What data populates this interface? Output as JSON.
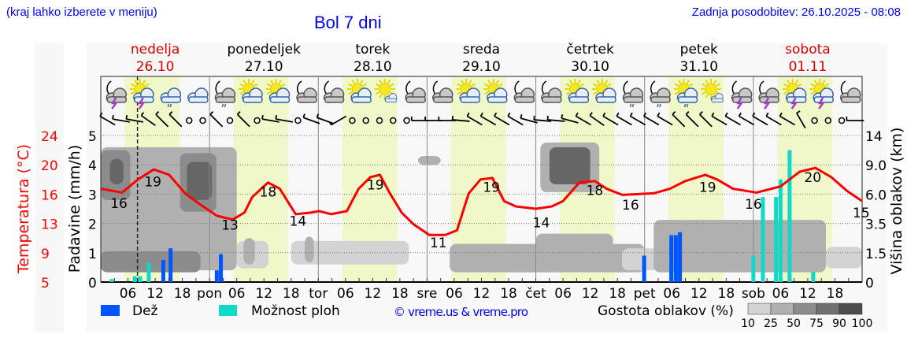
{
  "header": {
    "hint": "(kraj lahko izberete v meniju)",
    "title": "Bol 7 dni",
    "updated": "Zadnja posodobitev: 26.10.2025 - 08:08"
  },
  "colors": {
    "temp": "#ff0000",
    "rain": "#0055ff",
    "showers": "#11d9c8",
    "weekend": "#dd0000",
    "day_band": "#f0f7c8",
    "link": "#0000ff"
  },
  "chart_data": {
    "type": "meteogram",
    "title": "Bol 7 dni",
    "days": [
      {
        "name": "nedelja",
        "date": "26.10",
        "weekend": true
      },
      {
        "name": "ponedeljek",
        "date": "27.10",
        "weekend": false
      },
      {
        "name": "torek",
        "date": "28.10",
        "weekend": false
      },
      {
        "name": "sreda",
        "date": "29.10",
        "weekend": false
      },
      {
        "name": "četrtek",
        "date": "30.10",
        "weekend": false
      },
      {
        "name": "petek",
        "date": "31.10",
        "weekend": false
      },
      {
        "name": "sobota",
        "date": "01.11",
        "weekend": true
      }
    ],
    "x_tick_labels": [
      "06",
      "12",
      "18",
      "pon",
      "06",
      "12",
      "18",
      "tor",
      "06",
      "12",
      "18",
      "sre",
      "06",
      "12",
      "18",
      "čet",
      "06",
      "12",
      "18",
      "pet",
      "06",
      "12",
      "18",
      "sob",
      "06",
      "12",
      "18"
    ],
    "now_hour": 8.1,
    "daylight_hours": [
      5.3,
      17.4
    ],
    "left_temp_axis": {
      "label": "Temperatura (°C)",
      "ticks": [
        "24",
        "20",
        "16",
        "13",
        "9",
        "5"
      ],
      "range": [
        5,
        24
      ]
    },
    "left_precip_axis": {
      "label": "Padavine (mm/h)",
      "ticks": [
        "5",
        "4",
        "3",
        "2",
        "1",
        "0"
      ],
      "range": [
        0,
        5
      ]
    },
    "right_axis": {
      "label": "Višina oblakov (km)",
      "ticks": [
        "14",
        "9.0",
        "6.0",
        "3.5",
        "1.5",
        "0"
      ],
      "values": [
        14,
        9,
        6,
        3.5,
        1.5,
        0
      ]
    },
    "temperature": [
      [
        0,
        17.1
      ],
      [
        4.7,
        16.6
      ],
      [
        8.2,
        18.3
      ],
      [
        11.7,
        19.6
      ],
      [
        15.1,
        18.9
      ],
      [
        18.6,
        16.5
      ],
      [
        22.1,
        15.0
      ],
      [
        25.6,
        13.6
      ],
      [
        29.1,
        13.1
      ],
      [
        31.7,
        14.0
      ],
      [
        33.4,
        16.0
      ],
      [
        36.9,
        17.9
      ],
      [
        39.5,
        17.1
      ],
      [
        43,
        13.8
      ],
      [
        46.4,
        14.0
      ],
      [
        48.2,
        14.2
      ],
      [
        50.8,
        13.8
      ],
      [
        54.3,
        14.2
      ],
      [
        56.9,
        17.1
      ],
      [
        59.5,
        18.6
      ],
      [
        61.6,
        18.9
      ],
      [
        63.8,
        16.5
      ],
      [
        66.4,
        14.0
      ],
      [
        69,
        12.5
      ],
      [
        72.5,
        11.1
      ],
      [
        76,
        11.1
      ],
      [
        78.6,
        11.7
      ],
      [
        81.2,
        16.5
      ],
      [
        83.8,
        18.3
      ],
      [
        86.4,
        18.5
      ],
      [
        89,
        15.5
      ],
      [
        91.6,
        14.8
      ],
      [
        96,
        14.5
      ],
      [
        99.5,
        14.8
      ],
      [
        102,
        15.5
      ],
      [
        105.6,
        17.9
      ],
      [
        109,
        18.1
      ],
      [
        111.6,
        17.1
      ],
      [
        115.1,
        16.3
      ],
      [
        122,
        16.5
      ],
      [
        125.6,
        17.1
      ],
      [
        129,
        18.1
      ],
      [
        133.4,
        18.9
      ],
      [
        136,
        18.3
      ],
      [
        139.5,
        17.1
      ],
      [
        144.7,
        16.6
      ],
      [
        150,
        17.4
      ],
      [
        154.2,
        19.3
      ],
      [
        157.7,
        19.8
      ],
      [
        161.2,
        18.6
      ],
      [
        164.7,
        16.8
      ],
      [
        168,
        15.5
      ]
    ],
    "temp_labels": [
      [
        4,
        "16"
      ],
      [
        11.5,
        "19"
      ],
      [
        28.5,
        "13"
      ],
      [
        36.9,
        "18"
      ],
      [
        43.5,
        "14"
      ],
      [
        60.6,
        "19"
      ],
      [
        74.5,
        "11"
      ],
      [
        86.2,
        "19"
      ],
      [
        97.2,
        "14"
      ],
      [
        109,
        "18"
      ],
      [
        116.9,
        "16"
      ],
      [
        133.9,
        "19"
      ],
      [
        144,
        "16"
      ],
      [
        157.1,
        "20"
      ],
      [
        167.8,
        "15"
      ]
    ],
    "temp_label_values": [
      15.2,
      18.0,
      12.4,
      16.7,
      12.9,
      17.6,
      10.1,
      17.3,
      12.7,
      16.9,
      15.0,
      17.3,
      15.1,
      18.6,
      14.0
    ],
    "rain_mm": [
      [
        13.8,
        0.75
      ],
      [
        15.4,
        1.15
      ],
      [
        25.6,
        0.4
      ],
      [
        26.5,
        0.95
      ],
      [
        119.9,
        0.9
      ],
      [
        125.9,
        1.6
      ],
      [
        126.9,
        1.6
      ],
      [
        127.8,
        1.7
      ]
    ],
    "shower_mm": [
      [
        2.4,
        0.1
      ],
      [
        7.5,
        0.2
      ],
      [
        8.7,
        0.2
      ],
      [
        10.6,
        0.65
      ],
      [
        125.9,
        0.5
      ],
      [
        126.9,
        0.5
      ],
      [
        127.8,
        0.55
      ],
      [
        144,
        0.9
      ],
      [
        146.1,
        2.9
      ],
      [
        149,
        2.9
      ],
      [
        150,
        3.5
      ],
      [
        152,
        4.5
      ],
      [
        157.2,
        0.35
      ]
    ],
    "clouds": [
      {
        "h": [
          0,
          30
        ],
        "km": [
          0.6,
          12
        ],
        "density": 50
      },
      {
        "h": [
          0,
          6.5
        ],
        "km": [
          5.5,
          11.5
        ],
        "density": 75
      },
      {
        "h": [
          2,
          5
        ],
        "km": [
          7,
          10
        ],
        "density": 90
      },
      {
        "h": [
          17.5,
          25.5
        ],
        "km": [
          4.5,
          11
        ],
        "density": 75
      },
      {
        "h": [
          19,
          24.5
        ],
        "km": [
          5.5,
          9.5
        ],
        "density": 90
      },
      {
        "h": [
          0,
          22
        ],
        "km": [
          0.5,
          1.6
        ],
        "density": 75
      },
      {
        "h": [
          8,
          14
        ],
        "km": [
          10.5,
          11.5
        ],
        "density": 50
      },
      {
        "h": [
          30,
          37
        ],
        "km": [
          0.7,
          2.3
        ],
        "density": 25
      },
      {
        "h": [
          31.5,
          34
        ],
        "km": [
          0.9,
          2.5
        ],
        "density": 50
      },
      {
        "h": [
          42,
          68
        ],
        "km": [
          0.9,
          2.3
        ],
        "density": 25
      },
      {
        "h": [
          45,
          47
        ],
        "km": [
          1,
          2.6
        ],
        "density": 50
      },
      {
        "h": [
          70,
          75
        ],
        "km": [
          9,
          10.5
        ],
        "density": 50
      },
      {
        "h": [
          77,
          120
        ],
        "km": [
          0.5,
          2.1
        ],
        "density": 50
      },
      {
        "h": [
          96,
          113
        ],
        "km": [
          1.5,
          2.8
        ],
        "density": 50
      },
      {
        "h": [
          97,
          110
        ],
        "km": [
          6.2,
          12.8
        ],
        "density": 50
      },
      {
        "h": [
          99,
          108
        ],
        "km": [
          7,
          12
        ],
        "density": 90
      },
      {
        "h": [
          115,
          123
        ],
        "km": [
          0.6,
          1.8
        ],
        "density": 25
      },
      {
        "h": [
          122,
          160
        ],
        "km": [
          0.5,
          3.8
        ],
        "density": 50
      },
      {
        "h": [
          160,
          168
        ],
        "km": [
          0.7,
          1.9
        ],
        "density": 25
      }
    ],
    "icons": [
      "moon-cloud-lightning",
      "sun-cloud-lightning",
      "cloud-rain",
      "cloud",
      "moon-cloud-rain",
      "sun-cloud",
      "sun-cloud",
      "moon-cloud",
      "moon-cloud",
      "sun-cloud",
      "sun-smallcloud",
      "moon-cloud",
      "moon-cloud",
      "sun-cloud",
      "sun-cloud",
      "moon-cloud",
      "moon-cloud",
      "sun-cloud",
      "sun-cloud",
      "moon-cloud-rain",
      "moon-cloud-rain",
      "sun-cloud-rain",
      "sun-smallcloud",
      "moon-cloud-lightning",
      "moon-cloud-lightning",
      "sun-cloud-lightning",
      "sun-cloud-lightning",
      "moon-cloud"
    ],
    "wind_dir_deg": [
      300,
      280,
      280,
      305,
      315,
      315,
      null,
      null,
      315,
      null,
      315,
      null,
      280,
      280,
      null,
      290,
      290,
      240,
      null,
      null,
      null,
      null,
      null,
      270,
      270,
      270,
      275,
      300,
      300,
      300,
      300,
      285,
      275,
      275,
      285,
      300,
      305,
      300,
      300,
      300,
      300,
      300,
      315,
      315,
      315,
      300,
      300,
      300,
      300,
      300,
      300,
      330,
      null,
      null,
      null,
      270
    ],
    "legend": {
      "rain": "Dež",
      "showers": "Možnost ploh",
      "credit": "© vreme.us & vreme.pro",
      "cloud_density": "Gostota oblakov (%)",
      "density_levels": [
        "10",
        "25",
        "50",
        "75",
        "90",
        "100"
      ]
    }
  }
}
